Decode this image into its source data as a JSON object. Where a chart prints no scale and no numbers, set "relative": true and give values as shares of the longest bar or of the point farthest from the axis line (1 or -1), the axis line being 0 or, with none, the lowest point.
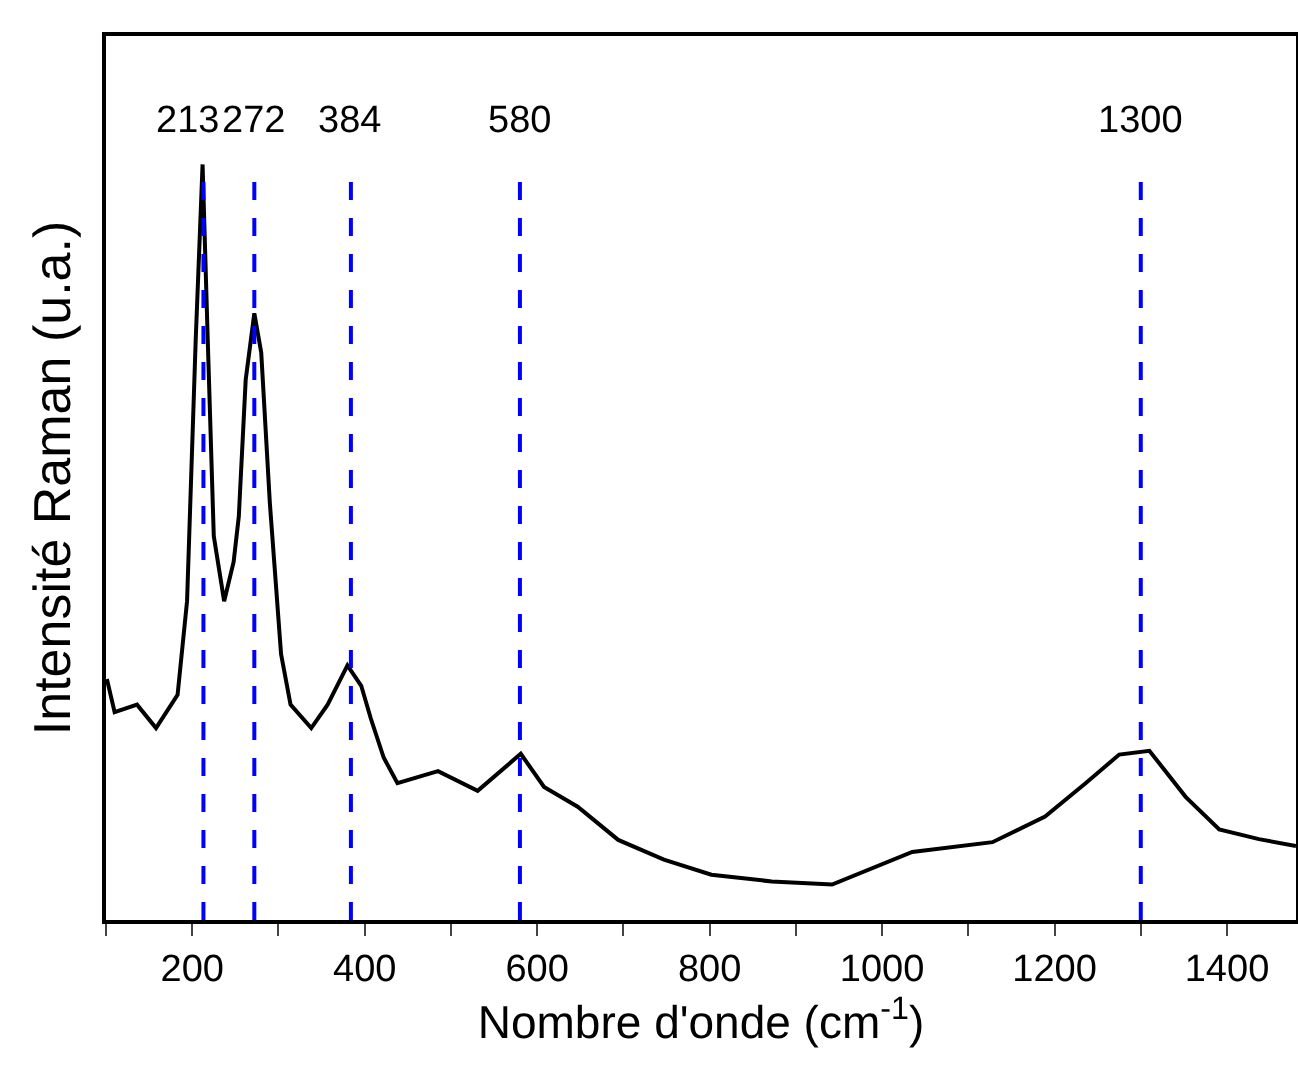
{
  "chart_data": {
    "type": "line",
    "xlabel": "Nombre d'onde (cm$^{-1}$)",
    "ylabel": "Intensité Raman (u.a.)",
    "relative": true,
    "xlim": [
      100,
      1480
    ],
    "xticks": [
      {
        "value": 100,
        "label": null
      },
      200,
      {
        "value": 300,
        "label": null
      },
      400,
      {
        "value": 500,
        "label": null
      },
      600,
      {
        "value": 700,
        "label": null
      },
      800,
      {
        "value": 900,
        "label": null
      },
      1000,
      {
        "value": 1100,
        "label": null
      },
      1200,
      {
        "value": 1300,
        "label": null
      },
      1400
    ],
    "series": [
      {
        "color": "#000000",
        "x": [
          101,
          110,
          136,
          158,
          183,
          194,
          204,
          212,
          218,
          225,
          237,
          248,
          254,
          262,
          272,
          280,
          290,
          303,
          314,
          338,
          357,
          380,
          396,
          407,
          422,
          438,
          485,
          531,
          581,
          608,
          647,
          694,
          747,
          802,
          872,
          942,
          1035,
          1128,
          1189,
          1236,
          1275,
          1310,
          1352,
          1391,
          1437,
          1480
        ],
        "values": [
          0.319,
          0.275,
          0.285,
          0.254,
          0.298,
          0.422,
          0.767,
          1.0,
          0.767,
          0.508,
          0.422,
          0.474,
          0.534,
          0.715,
          0.803,
          0.751,
          0.552,
          0.352,
          0.285,
          0.254,
          0.285,
          0.337,
          0.31,
          0.267,
          0.215,
          0.181,
          0.197,
          0.171,
          0.22,
          0.176,
          0.15,
          0.106,
          0.08,
          0.06,
          0.051,
          0.047,
          0.09,
          0.103,
          0.137,
          0.181,
          0.219,
          0.224,
          0.163,
          0.12,
          0.107,
          0.098
        ]
      }
    ],
    "ref_lines": [
      {
        "axis": "x",
        "value": 213,
        "label": "213",
        "color": "#0000ff",
        "line_style": "dashed"
      },
      {
        "axis": "x",
        "value": 272,
        "label": "272",
        "color": "#0000ff",
        "line_style": "dashed"
      },
      {
        "axis": "x",
        "value": 384,
        "label": "384",
        "color": "#0000ff",
        "line_style": "dashed"
      },
      {
        "axis": "x",
        "value": 580,
        "label": "580",
        "color": "#0000ff",
        "line_style": "dashed"
      },
      {
        "axis": "x",
        "value": 1300,
        "label": "1300",
        "color": "#0000ff",
        "line_style": "dashed"
      }
    ],
    "grid": false
  }
}
